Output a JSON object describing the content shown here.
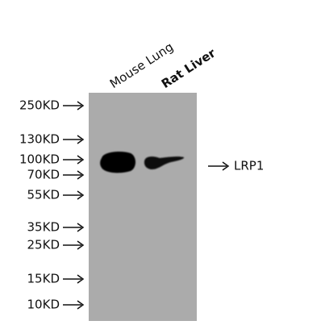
{
  "lanes": [
    "Mouse Lung",
    "Rat Liver"
  ],
  "markers": [
    "250KD",
    "130KD",
    "100KD",
    "70KD",
    "55KD",
    "35KD",
    "25KD",
    "15KD",
    "10KD"
  ],
  "band_label": "LRP1"
}
